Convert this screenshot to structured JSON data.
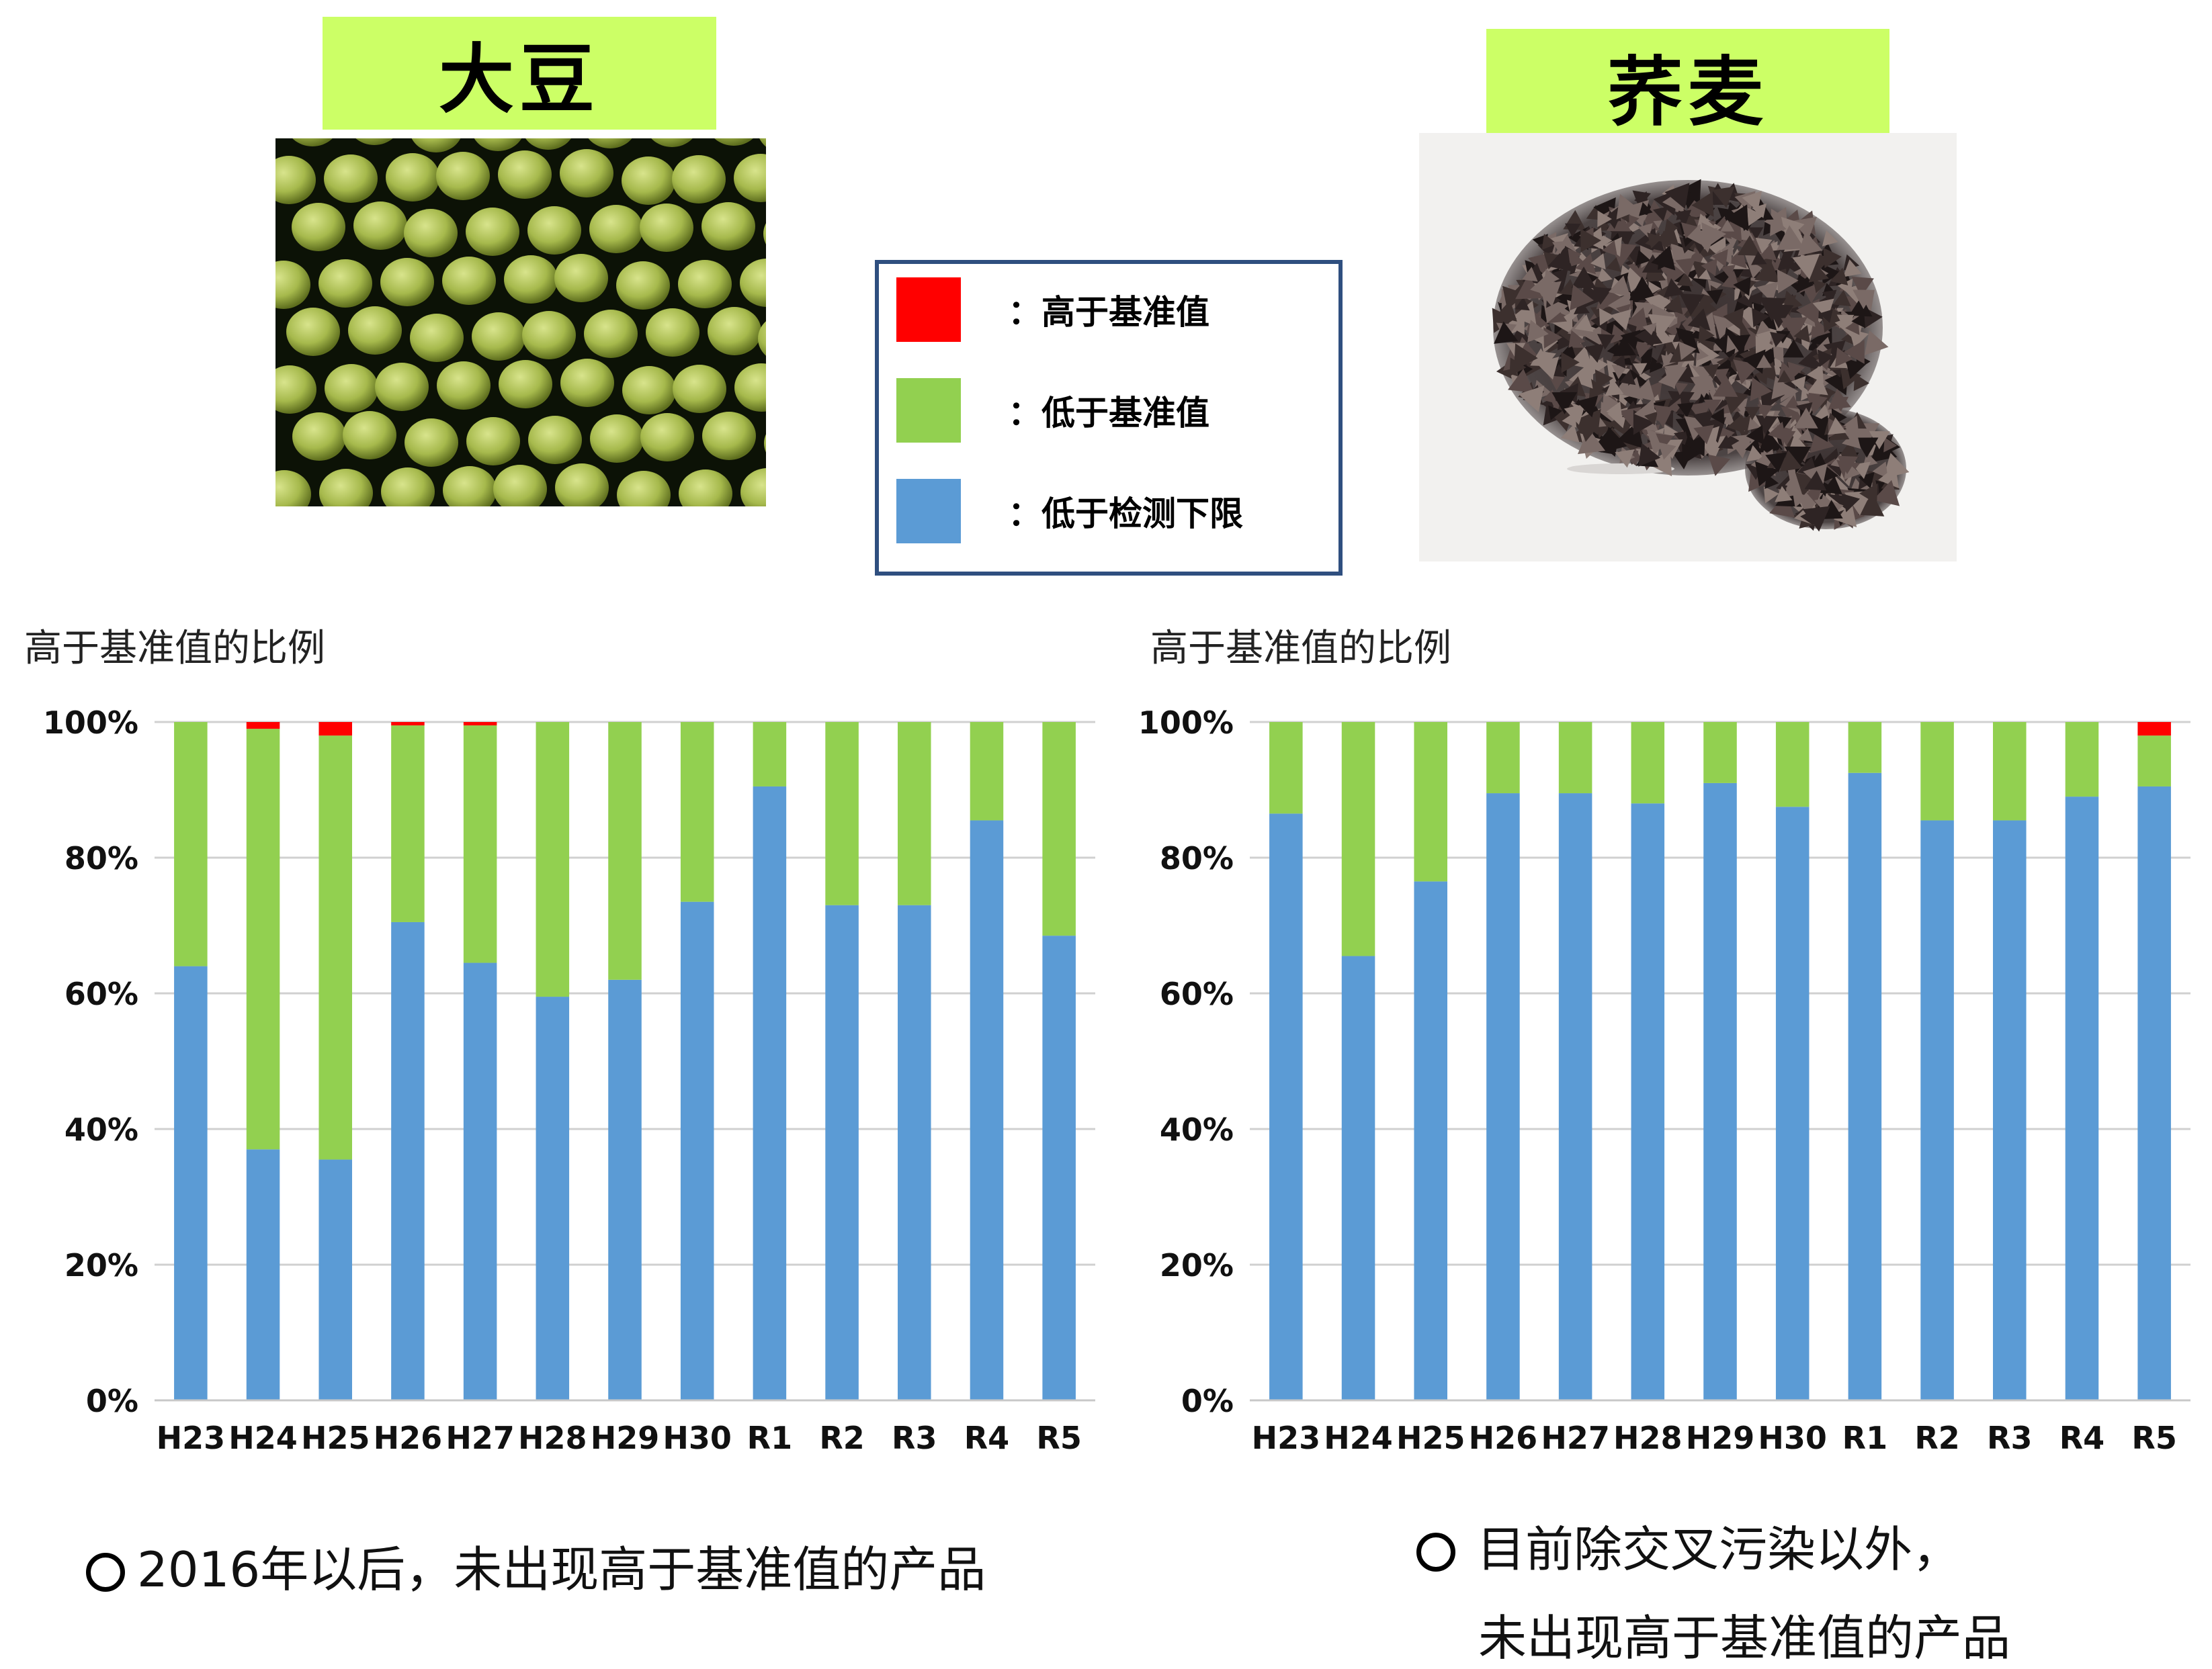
{
  "soy": {
    "title": "大豆"
  },
  "buckwheat": {
    "title": "荞麦"
  },
  "legend": {
    "items": [
      {
        "label": "：高于基准值",
        "color": "#ff0000"
      },
      {
        "label": "：低于基准值",
        "color": "#92d050"
      },
      {
        "label": "：低于检测下限",
        "color": "#5b9bd5"
      }
    ]
  },
  "captions": {
    "left": "高于基准值的比例",
    "right": "高于基准值的比例"
  },
  "notes": {
    "left": "2016年以后，未出现高于基准值的产品",
    "right_line1": "目前除交叉污染以外，",
    "right_line2": "未出现高于基准值的产品"
  },
  "chart_data": [
    {
      "type": "bar",
      "stacked": true,
      "categories": [
        "H23",
        "H24",
        "H25",
        "H26",
        "H27",
        "H28",
        "H29",
        "H30",
        "R1",
        "R2",
        "R3",
        "R4",
        "R5"
      ],
      "yticks": [
        "0%",
        "20%",
        "40%",
        "60%",
        "80%",
        "100%"
      ],
      "ylim": [
        0,
        100
      ],
      "grid": true,
      "series": [
        {
          "name": "低于检测下限",
          "color": "#5b9bd5",
          "values": [
            64,
            37,
            35.5,
            70.5,
            64.5,
            59.5,
            62,
            73.5,
            90.5,
            73,
            73,
            85.5,
            68.5
          ]
        },
        {
          "name": "低于基准值",
          "color": "#92d050",
          "values": [
            36,
            62,
            62.5,
            29,
            35,
            40.5,
            38,
            26.5,
            9.5,
            27,
            27,
            14.5,
            31.5
          ]
        },
        {
          "name": "高于基准值",
          "color": "#ff0000",
          "values": [
            0,
            1,
            2,
            0.5,
            0.5,
            0,
            0,
            0,
            0,
            0,
            0,
            0,
            0
          ]
        }
      ]
    },
    {
      "type": "bar",
      "stacked": true,
      "categories": [
        "H23",
        "H24",
        "H25",
        "H26",
        "H27",
        "H28",
        "H29",
        "H30",
        "R1",
        "R2",
        "R3",
        "R4",
        "R5"
      ],
      "yticks": [
        "0%",
        "20%",
        "40%",
        "60%",
        "80%",
        "100%"
      ],
      "ylim": [
        0,
        100
      ],
      "grid": true,
      "series": [
        {
          "name": "低于检测下限",
          "color": "#5b9bd5",
          "values": [
            86.5,
            65.5,
            76.5,
            89.5,
            89.5,
            88,
            91,
            87.5,
            92.5,
            85.5,
            85.5,
            89,
            90.5
          ]
        },
        {
          "name": "低于基准值",
          "color": "#92d050",
          "values": [
            13.5,
            34.5,
            23.5,
            10.5,
            10.5,
            12,
            9,
            12.5,
            7.5,
            14.5,
            14.5,
            11,
            7.5
          ]
        },
        {
          "name": "高于基准值",
          "color": "#ff0000",
          "values": [
            0,
            0,
            0,
            0,
            0,
            0,
            0,
            0,
            0,
            0,
            0,
            0,
            2
          ]
        }
      ]
    }
  ]
}
